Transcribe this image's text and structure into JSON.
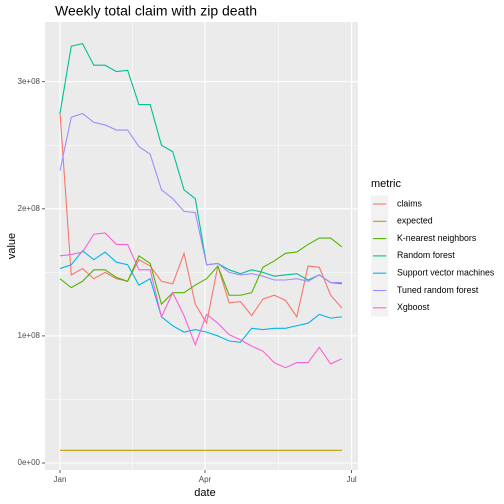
{
  "chart_data": {
    "type": "line",
    "title": "Weekly total claim with zip death",
    "xlabel": "date",
    "ylabel": "value",
    "legend_title": "metric",
    "x": [
      0,
      7,
      14,
      21,
      28,
      35,
      42,
      49,
      56,
      63,
      70,
      77,
      84,
      91,
      98,
      105,
      112,
      119,
      126,
      133,
      140,
      147,
      154,
      161,
      168,
      175
    ],
    "xlim": [
      -9.3,
      185
    ],
    "xticks": [
      {
        "value": 0,
        "label": "Jan"
      },
      {
        "value": 90,
        "label": "Apr"
      },
      {
        "value": 181,
        "label": "Jul"
      }
    ],
    "ylim": [
      -5500000.0,
      347000000.0
    ],
    "yticks": [
      {
        "value": 0,
        "label": "0e+00"
      },
      {
        "value": 100000000.0,
        "label": "1e+08"
      },
      {
        "value": 200000000.0,
        "label": "2e+08"
      },
      {
        "value": 300000000.0,
        "label": "3e+08"
      }
    ],
    "grid": true,
    "legend": "right",
    "series": [
      {
        "name": "claims",
        "color": "#F8766D",
        "values": [
          276000000.0,
          148000000.0,
          153000000.0,
          145000000.0,
          150000000.0,
          145000000.0,
          143000000.0,
          160000000.0,
          155000000.0,
          143000000.0,
          141000000.0,
          165000000.0,
          125000000.0,
          110000000.0,
          155000000.0,
          126000000.0,
          127000000.0,
          116000000.0,
          129000000.0,
          132000000.0,
          128000000.0,
          115000000.0,
          155000000.0,
          154000000.0,
          132000000.0,
          122000000.0
        ]
      },
      {
        "name": "expected",
        "color": "#C49A00",
        "values": [
          10000000.0,
          10000000.0,
          10000000.0,
          10000000.0,
          10000000.0,
          10000000.0,
          10000000.0,
          10000000.0,
          10000000.0,
          10000000.0,
          10000000.0,
          10000000.0,
          10000000.0,
          10000000.0,
          10000000.0,
          10000000.0,
          10000000.0,
          10000000.0,
          10000000.0,
          10000000.0,
          10000000.0,
          10000000.0,
          10000000.0,
          10000000.0,
          10000000.0,
          10000000.0
        ]
      },
      {
        "name": "K-nearest neighbors",
        "color": "#53B400",
        "values": [
          145000000.0,
          138000000.0,
          143000000.0,
          152000000.0,
          152000000.0,
          146000000.0,
          143000000.0,
          163000000.0,
          157000000.0,
          125000000.0,
          134000000.0,
          134000000.0,
          140000000.0,
          145000000.0,
          155000000.0,
          132000000.0,
          132000000.0,
          134000000.0,
          154000000.0,
          159000000.0,
          165000000.0,
          166000000.0,
          172000000.0,
          177000000.0,
          177000000.0,
          170000000.0
        ]
      },
      {
        "name": "Random forest",
        "color": "#00C094",
        "values": [
          275000000.0,
          328000000.0,
          330000000.0,
          313000000.0,
          313000000.0,
          308000000.0,
          309000000.0,
          282000000.0,
          282000000.0,
          250000000.0,
          245000000.0,
          215000000.0,
          208000000.0,
          156000000.0,
          157000000.0,
          152000000.0,
          149000000.0,
          152000000.0,
          150000000.0,
          147000000.0,
          148000000.0,
          149000000.0,
          144000000.0,
          148000000.0,
          142000000.0,
          141000000.0
        ]
      },
      {
        "name": "Support vector machines",
        "color": "#00B6EB",
        "values": [
          153000000.0,
          156000000.0,
          167000000.0,
          160000000.0,
          166000000.0,
          158000000.0,
          156000000.0,
          140000000.0,
          145000000.0,
          115000000.0,
          108000000.0,
          103000000.0,
          105000000.0,
          103000000.0,
          100000000.0,
          96000000.0,
          95000000.0,
          106000000.0,
          105000000.0,
          106000000.0,
          106000000.0,
          108000000.0,
          110000000.0,
          117000000.0,
          114000000.0,
          115000000.0
        ]
      },
      {
        "name": "Tuned random forest",
        "color": "#A58AFF",
        "values": [
          230000000.0,
          272000000.0,
          275000000.0,
          268000000.0,
          266000000.0,
          262000000.0,
          262000000.0,
          249000000.0,
          243000000.0,
          215000000.0,
          208000000.0,
          198000000.0,
          197000000.0,
          156000000.0,
          157000000.0,
          150000000.0,
          148000000.0,
          149000000.0,
          147000000.0,
          144000000.0,
          144000000.0,
          145000000.0,
          143000000.0,
          148000000.0,
          142000000.0,
          142000000.0
        ]
      },
      {
        "name": "Xgboost",
        "color": "#FB61D7",
        "values": [
          163000000.0,
          164000000.0,
          166000000.0,
          180000000.0,
          181000000.0,
          172000000.0,
          172000000.0,
          152000000.0,
          152000000.0,
          115000000.0,
          134000000.0,
          116000000.0,
          93000000.0,
          117000000.0,
          110000000.0,
          101000000.0,
          97000000.0,
          92000000.0,
          88000000.0,
          79000000.0,
          75000000.0,
          79000000.0,
          79000000.0,
          91000000.0,
          78000000.0,
          82000000.0
        ]
      }
    ]
  }
}
